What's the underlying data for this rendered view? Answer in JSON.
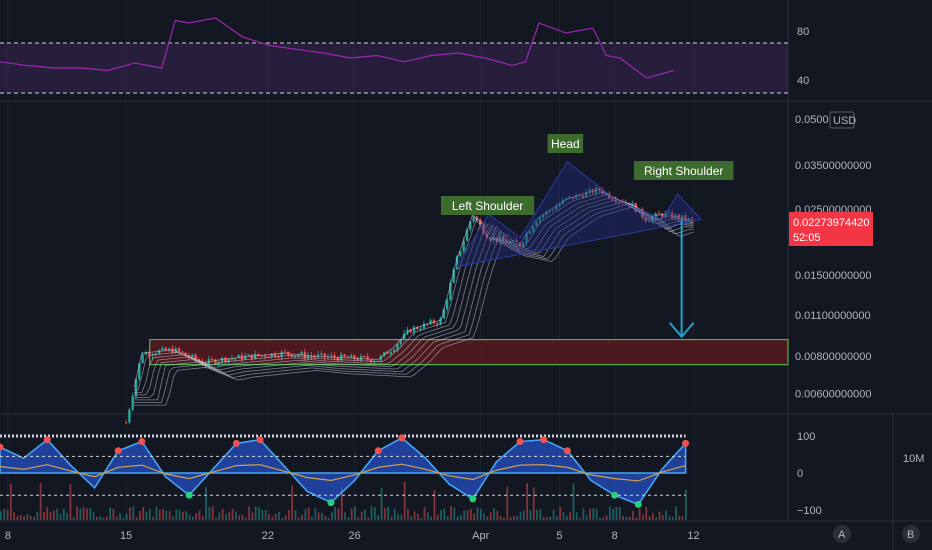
{
  "chart_data": [
    {
      "type": "line",
      "panel": "rsi",
      "ylim": [
        25,
        100
      ],
      "yticks": [
        40,
        80
      ],
      "bands": [
        30,
        70
      ],
      "line_color": "#9c27b0",
      "x": [
        0,
        4,
        8,
        12,
        16,
        20,
        24,
        26,
        28,
        32,
        36,
        40,
        44,
        48,
        52,
        56,
        60,
        64,
        68,
        72,
        76,
        78,
        80,
        84,
        88,
        90,
        92,
        96,
        100
      ],
      "values": [
        55,
        52,
        50,
        50,
        48,
        54,
        50,
        88,
        86,
        90,
        75,
        68,
        65,
        62,
        58,
        60,
        55,
        60,
        62,
        58,
        52,
        55,
        86,
        78,
        82,
        60,
        58,
        42,
        48
      ]
    },
    {
      "type": "line",
      "panel": "price",
      "currency": "USD",
      "yticks": [
        0.006,
        0.008,
        0.011,
        0.015,
        0.025,
        0.035,
        0.05
      ],
      "ytick_labels": [
        "0.00600000000",
        "0.00800000000",
        "0.01100000000",
        "0.01500000000",
        "0.02500000000",
        "0.03500000000",
        "0.0500"
      ],
      "last_price": "0.02273974420",
      "countdown": "52:05",
      "support_zone": [
        0.0075,
        0.0091
      ],
      "close_path": [
        [
          0,
          0.0045
        ],
        [
          16,
          0.0048
        ],
        [
          18,
          0.0082
        ],
        [
          22,
          0.0084
        ],
        [
          26,
          0.0076
        ],
        [
          28,
          0.0078
        ],
        [
          32,
          0.008
        ],
        [
          36,
          0.0082
        ],
        [
          40,
          0.008
        ],
        [
          44,
          0.0079
        ],
        [
          48,
          0.0078
        ],
        [
          50,
          0.0086
        ],
        [
          52,
          0.0098
        ],
        [
          56,
          0.0106
        ],
        [
          58,
          0.017
        ],
        [
          60,
          0.024
        ],
        [
          62,
          0.02
        ],
        [
          66,
          0.019
        ],
        [
          68,
          0.023
        ],
        [
          72,
          0.027
        ],
        [
          76,
          0.029
        ],
        [
          78,
          0.027
        ],
        [
          80,
          0.026
        ],
        [
          82,
          0.023
        ],
        [
          84,
          0.024
        ],
        [
          86,
          0.0235
        ],
        [
          88,
          0.0227
        ]
      ],
      "pattern": [
        [
          58,
          0.016
        ],
        [
          62,
          0.024
        ],
        [
          66,
          0.02
        ],
        [
          72,
          0.036
        ],
        [
          78,
          0.027
        ],
        [
          84,
          0.023
        ],
        [
          86,
          0.028
        ],
        [
          89,
          0.023
        ]
      ],
      "annotations": [
        {
          "label": "Left Shoulder",
          "x": 62
        },
        {
          "label": "Head",
          "x": 72
        },
        {
          "label": "Right Shoulder",
          "x": 86
        }
      ],
      "arrow_from": 0.023,
      "arrow_to": 0.0093
    },
    {
      "type": "area",
      "panel": "oscillator",
      "ylim": [
        -110,
        110
      ],
      "yticks": [
        -100,
        0,
        100
      ],
      "volume_label": "10M",
      "bands": [
        -60,
        45,
        100
      ],
      "x": [
        0,
        3,
        6,
        9,
        12,
        15,
        18,
        21,
        24,
        27,
        30,
        33,
        36,
        39,
        42,
        45,
        48,
        51,
        54,
        57,
        60,
        63,
        66,
        69,
        72,
        75,
        78,
        81,
        84,
        87
      ],
      "values": [
        70,
        40,
        90,
        20,
        -40,
        60,
        85,
        -10,
        -60,
        10,
        80,
        90,
        20,
        -50,
        -80,
        -20,
        60,
        95,
        40,
        -30,
        -70,
        30,
        85,
        90,
        60,
        -20,
        -60,
        -85,
        10,
        80
      ]
    }
  ],
  "xaxis": {
    "labels": [
      {
        "text": "8",
        "x": 1
      },
      {
        "text": "15",
        "x": 16
      },
      {
        "text": "22",
        "x": 34
      },
      {
        "text": "26",
        "x": 45
      },
      {
        "text": "Apr",
        "x": 61
      },
      {
        "text": "5",
        "x": 71
      },
      {
        "text": "8",
        "x": 78
      },
      {
        "text": "12",
        "x": 88
      }
    ]
  },
  "scale_buttons": [
    "A",
    "B"
  ]
}
